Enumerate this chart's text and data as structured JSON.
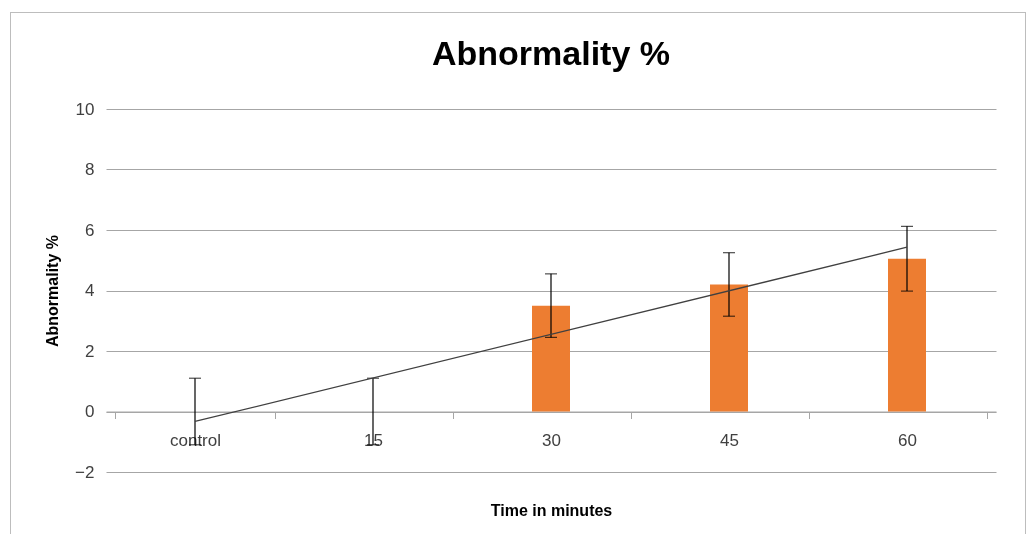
{
  "chart_data": {
    "type": "bar",
    "title": "Abnormality %",
    "xlabel": "Time in minutes",
    "ylabel": "Abnormality %",
    "categories": [
      "control",
      "15",
      "30",
      "45",
      "60"
    ],
    "series": [
      {
        "color": "#ed7d31",
        "values": [
          0,
          0,
          3.5,
          4.2,
          5.05
        ],
        "errors": [
          1.1,
          1.1,
          1.05,
          1.05,
          1.07
        ]
      },
      {
        "type": "line",
        "color": "#404040",
        "x": [
          "control",
          "60"
        ],
        "values": [
          -0.33,
          5.43
        ]
      }
    ],
    "ylim": [
      -2,
      10
    ],
    "yticks": [
      -2,
      0,
      2,
      4,
      6,
      8,
      10
    ],
    "grid": "y"
  }
}
